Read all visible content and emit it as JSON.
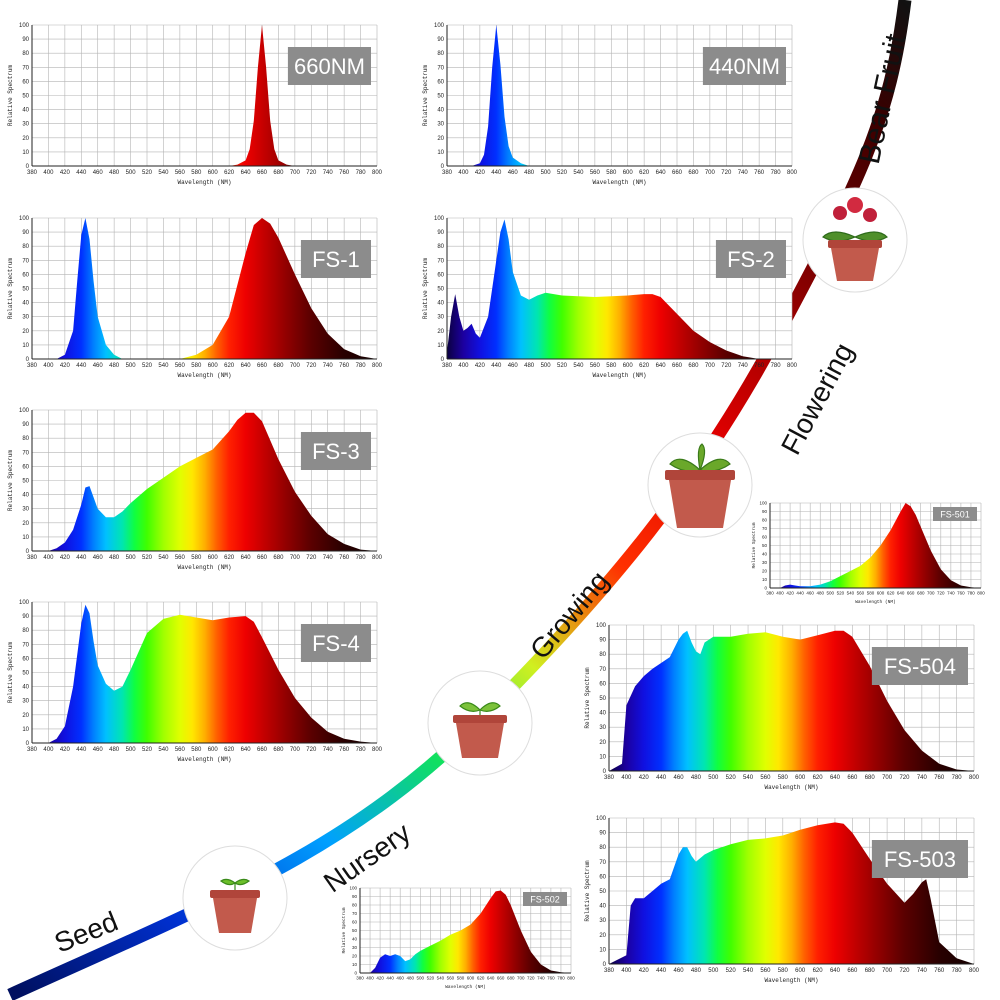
{
  "stage_labels": [
    "Seed",
    "Nursery",
    "Growing",
    "Flowering",
    "Bear Fruit"
  ],
  "colors": {
    "label_box": "#8c8c8c",
    "label_text": "#ffffff",
    "grid": "#b4b4b4",
    "axis": "#222222"
  },
  "chart_data": [
    {
      "id": "c660",
      "type": "area",
      "label": "660NM",
      "xlabel": "Wavelength (NM)",
      "ylabel": "Relative Spectrum",
      "xticks": [
        380,
        400,
        420,
        440,
        460,
        480,
        500,
        520,
        540,
        560,
        580,
        600,
        620,
        640,
        660,
        680,
        700,
        720,
        740,
        760,
        780,
        800
      ],
      "yticks": [
        0,
        10,
        20,
        30,
        40,
        50,
        60,
        70,
        80,
        90,
        100
      ],
      "xlim": [
        380,
        800
      ],
      "ylim": [
        0,
        100
      ],
      "grid": true,
      "x": [
        620,
        630,
        640,
        645,
        650,
        655,
        660,
        665,
        670,
        675,
        680,
        690,
        700
      ],
      "y": [
        0,
        1,
        4,
        12,
        32,
        70,
        100,
        70,
        32,
        12,
        4,
        1,
        0
      ]
    },
    {
      "id": "c440",
      "type": "area",
      "label": "440NM",
      "xlabel": "Wavelength (NM)",
      "ylabel": "Relative Spectrum",
      "xticks": [
        380,
        400,
        420,
        440,
        460,
        480,
        500,
        520,
        540,
        560,
        580,
        600,
        620,
        640,
        660,
        680,
        700,
        720,
        740,
        760,
        780,
        800
      ],
      "yticks": [
        0,
        10,
        20,
        30,
        40,
        50,
        60,
        70,
        80,
        90,
        100
      ],
      "xlim": [
        380,
        800
      ],
      "ylim": [
        0,
        100
      ],
      "grid": true,
      "x": [
        410,
        420,
        425,
        430,
        435,
        440,
        445,
        450,
        455,
        460,
        470,
        480
      ],
      "y": [
        0,
        2,
        8,
        28,
        70,
        100,
        72,
        35,
        14,
        6,
        2,
        0
      ]
    },
    {
      "id": "fs1",
      "type": "area",
      "label": "FS-1",
      "xlabel": "Wavelength (NM)",
      "ylabel": "Relative Spectrum",
      "xticks": [
        380,
        400,
        420,
        440,
        460,
        480,
        500,
        520,
        540,
        560,
        580,
        600,
        620,
        640,
        660,
        680,
        700,
        720,
        740,
        760,
        780,
        800
      ],
      "yticks": [
        0,
        10,
        20,
        30,
        40,
        50,
        60,
        70,
        80,
        90,
        100
      ],
      "xlim": [
        380,
        800
      ],
      "ylim": [
        0,
        100
      ],
      "grid": true,
      "x": [
        410,
        420,
        430,
        435,
        440,
        445,
        450,
        455,
        460,
        470,
        480,
        490,
        560,
        580,
        600,
        620,
        640,
        650,
        660,
        670,
        680,
        700,
        720,
        740,
        760,
        780,
        800
      ],
      "y": [
        0,
        3,
        20,
        55,
        88,
        100,
        85,
        55,
        30,
        10,
        3,
        0,
        0,
        3,
        10,
        30,
        75,
        95,
        100,
        96,
        86,
        60,
        36,
        18,
        7,
        2,
        0
      ]
    },
    {
      "id": "fs2",
      "type": "area",
      "label": "FS-2",
      "xlabel": "Wavelength (NM)",
      "ylabel": "Relative Spectrum",
      "xticks": [
        380,
        400,
        420,
        440,
        460,
        480,
        500,
        520,
        540,
        560,
        580,
        600,
        620,
        640,
        660,
        680,
        700,
        720,
        740,
        760,
        780,
        800
      ],
      "yticks": [
        0,
        10,
        20,
        30,
        40,
        50,
        60,
        70,
        80,
        90,
        100
      ],
      "xlim": [
        380,
        800
      ],
      "ylim": [
        0,
        100
      ],
      "grid": true,
      "x": [
        380,
        385,
        390,
        395,
        400,
        405,
        410,
        415,
        420,
        430,
        440,
        445,
        450,
        455,
        460,
        470,
        480,
        490,
        500,
        520,
        560,
        600,
        620,
        630,
        640,
        660,
        680,
        700,
        720,
        740,
        760
      ],
      "y": [
        5,
        30,
        46,
        30,
        20,
        22,
        25,
        18,
        15,
        30,
        70,
        90,
        99,
        85,
        62,
        45,
        42,
        45,
        47,
        45,
        44,
        45,
        46,
        46,
        44,
        32,
        20,
        12,
        6,
        2,
        0
      ]
    },
    {
      "id": "fs3",
      "type": "area",
      "label": "FS-3",
      "xlabel": "Wavelength (NM)",
      "ylabel": "Relative Spectrum",
      "xticks": [
        380,
        400,
        420,
        440,
        460,
        480,
        500,
        520,
        540,
        560,
        580,
        600,
        620,
        640,
        660,
        680,
        700,
        720,
        740,
        760,
        780,
        800
      ],
      "yticks": [
        0,
        10,
        20,
        30,
        40,
        50,
        60,
        70,
        80,
        90,
        100
      ],
      "xlim": [
        380,
        800
      ],
      "ylim": [
        0,
        100
      ],
      "grid": true,
      "x": [
        400,
        410,
        420,
        430,
        440,
        445,
        450,
        455,
        460,
        470,
        480,
        490,
        500,
        520,
        540,
        560,
        580,
        600,
        620,
        630,
        640,
        650,
        660,
        680,
        700,
        720,
        740,
        760,
        780,
        800
      ],
      "y": [
        0,
        2,
        6,
        15,
        33,
        45,
        46,
        38,
        30,
        24,
        24,
        28,
        34,
        44,
        52,
        60,
        66,
        72,
        85,
        93,
        98,
        98,
        92,
        65,
        42,
        25,
        12,
        5,
        1,
        0
      ]
    },
    {
      "id": "fs4",
      "type": "area",
      "label": "FS-4",
      "xlabel": "Wavelength (NM)",
      "ylabel": "Relative Spectrum",
      "xticks": [
        380,
        400,
        420,
        440,
        460,
        480,
        500,
        520,
        540,
        560,
        580,
        600,
        620,
        640,
        660,
        680,
        700,
        720,
        740,
        760,
        780,
        800
      ],
      "yticks": [
        0,
        10,
        20,
        30,
        40,
        50,
        60,
        70,
        80,
        90,
        100
      ],
      "xlim": [
        380,
        800
      ],
      "ylim": [
        0,
        100
      ],
      "grid": true,
      "x": [
        400,
        410,
        420,
        430,
        440,
        445,
        450,
        455,
        460,
        470,
        480,
        490,
        500,
        520,
        540,
        560,
        580,
        600,
        620,
        640,
        650,
        660,
        680,
        700,
        720,
        740,
        760,
        780,
        800
      ],
      "y": [
        0,
        3,
        12,
        40,
        85,
        98,
        92,
        72,
        55,
        42,
        37,
        40,
        52,
        78,
        88,
        91,
        89,
        87,
        89,
        90,
        86,
        75,
        52,
        32,
        18,
        8,
        3,
        1,
        0
      ]
    },
    {
      "id": "fs501",
      "type": "area",
      "label": "FS-501",
      "xlabel": "Wavelength (NM)",
      "ylabel": "Relative Spectrum",
      "xticks": [
        380,
        400,
        420,
        440,
        460,
        480,
        500,
        520,
        540,
        560,
        580,
        600,
        620,
        640,
        660,
        680,
        700,
        720,
        740,
        760,
        780,
        800
      ],
      "yticks": [
        0,
        10,
        20,
        30,
        40,
        50,
        60,
        70,
        80,
        90,
        100
      ],
      "xlim": [
        380,
        800
      ],
      "ylim": [
        0,
        100
      ],
      "grid": true,
      "x": [
        400,
        410,
        420,
        430,
        440,
        450,
        460,
        480,
        500,
        520,
        540,
        560,
        580,
        600,
        620,
        640,
        650,
        660,
        670,
        680,
        700,
        720,
        740,
        760,
        780,
        800
      ],
      "y": [
        0,
        3,
        4,
        3,
        2,
        2,
        2,
        4,
        8,
        14,
        20,
        26,
        36,
        50,
        68,
        90,
        100,
        96,
        86,
        72,
        44,
        22,
        9,
        3,
        1,
        0
      ]
    },
    {
      "id": "fs502",
      "type": "area",
      "label": "FS-502",
      "xlabel": "Wavelength (NM)",
      "ylabel": "Relative Spectrum",
      "xticks": [
        380,
        400,
        420,
        440,
        460,
        480,
        500,
        520,
        540,
        560,
        580,
        600,
        620,
        640,
        660,
        680,
        700,
        720,
        740,
        760,
        780,
        800
      ],
      "yticks": [
        0,
        10,
        20,
        30,
        40,
        50,
        60,
        70,
        80,
        90,
        100
      ],
      "xlim": [
        380,
        800
      ],
      "ylim": [
        0,
        100
      ],
      "grid": true,
      "x": [
        400,
        410,
        420,
        430,
        440,
        450,
        460,
        470,
        480,
        490,
        500,
        520,
        540,
        560,
        580,
        600,
        620,
        640,
        650,
        660,
        670,
        680,
        700,
        720,
        740,
        760,
        780,
        800
      ],
      "y": [
        0,
        6,
        18,
        22,
        20,
        22,
        20,
        14,
        16,
        22,
        26,
        32,
        38,
        45,
        50,
        57,
        70,
        88,
        96,
        97,
        92,
        80,
        50,
        25,
        10,
        3,
        1,
        0
      ]
    },
    {
      "id": "fs504",
      "type": "area",
      "label": "FS-504",
      "xlabel": "Wavelength (NM)",
      "ylabel": "Relative Spectrum",
      "xticks": [
        380,
        400,
        420,
        440,
        460,
        480,
        500,
        520,
        540,
        560,
        580,
        600,
        620,
        640,
        660,
        680,
        700,
        720,
        740,
        760,
        780,
        800
      ],
      "yticks": [
        0,
        10,
        20,
        30,
        40,
        50,
        60,
        70,
        80,
        90,
        100
      ],
      "xlim": [
        380,
        800
      ],
      "ylim": [
        0,
        100
      ],
      "grid": true,
      "x": [
        380,
        395,
        400,
        410,
        420,
        430,
        440,
        450,
        460,
        465,
        470,
        475,
        480,
        485,
        490,
        500,
        520,
        540,
        560,
        580,
        600,
        620,
        640,
        650,
        660,
        680,
        700,
        720,
        740,
        760,
        780,
        800
      ],
      "y": [
        0,
        5,
        45,
        58,
        65,
        70,
        74,
        78,
        90,
        94,
        96,
        88,
        82,
        80,
        88,
        92,
        92,
        94,
        95,
        92,
        90,
        93,
        96,
        96,
        92,
        72,
        48,
        28,
        14,
        5,
        1,
        0
      ]
    },
    {
      "id": "fs503",
      "type": "area",
      "label": "FS-503",
      "xlabel": "Wavelength (NM)",
      "ylabel": "Relative Spectrum",
      "xticks": [
        380,
        400,
        420,
        440,
        460,
        480,
        500,
        520,
        540,
        560,
        580,
        600,
        620,
        640,
        660,
        680,
        700,
        720,
        740,
        760,
        780,
        800
      ],
      "yticks": [
        0,
        10,
        20,
        30,
        40,
        50,
        60,
        70,
        80,
        90,
        100
      ],
      "xlim": [
        380,
        800
      ],
      "ylim": [
        0,
        100
      ],
      "grid": true,
      "x": [
        380,
        400,
        405,
        410,
        420,
        430,
        440,
        450,
        460,
        465,
        470,
        475,
        480,
        490,
        500,
        520,
        540,
        560,
        580,
        600,
        620,
        640,
        650,
        660,
        680,
        700,
        720,
        730,
        740,
        745,
        750,
        760,
        780,
        800
      ],
      "y": [
        0,
        6,
        40,
        45,
        45,
        50,
        55,
        58,
        75,
        80,
        80,
        74,
        70,
        75,
        78,
        82,
        85,
        86,
        88,
        92,
        95,
        97,
        96,
        90,
        72,
        55,
        42,
        48,
        56,
        58,
        45,
        15,
        4,
        0
      ]
    }
  ]
}
